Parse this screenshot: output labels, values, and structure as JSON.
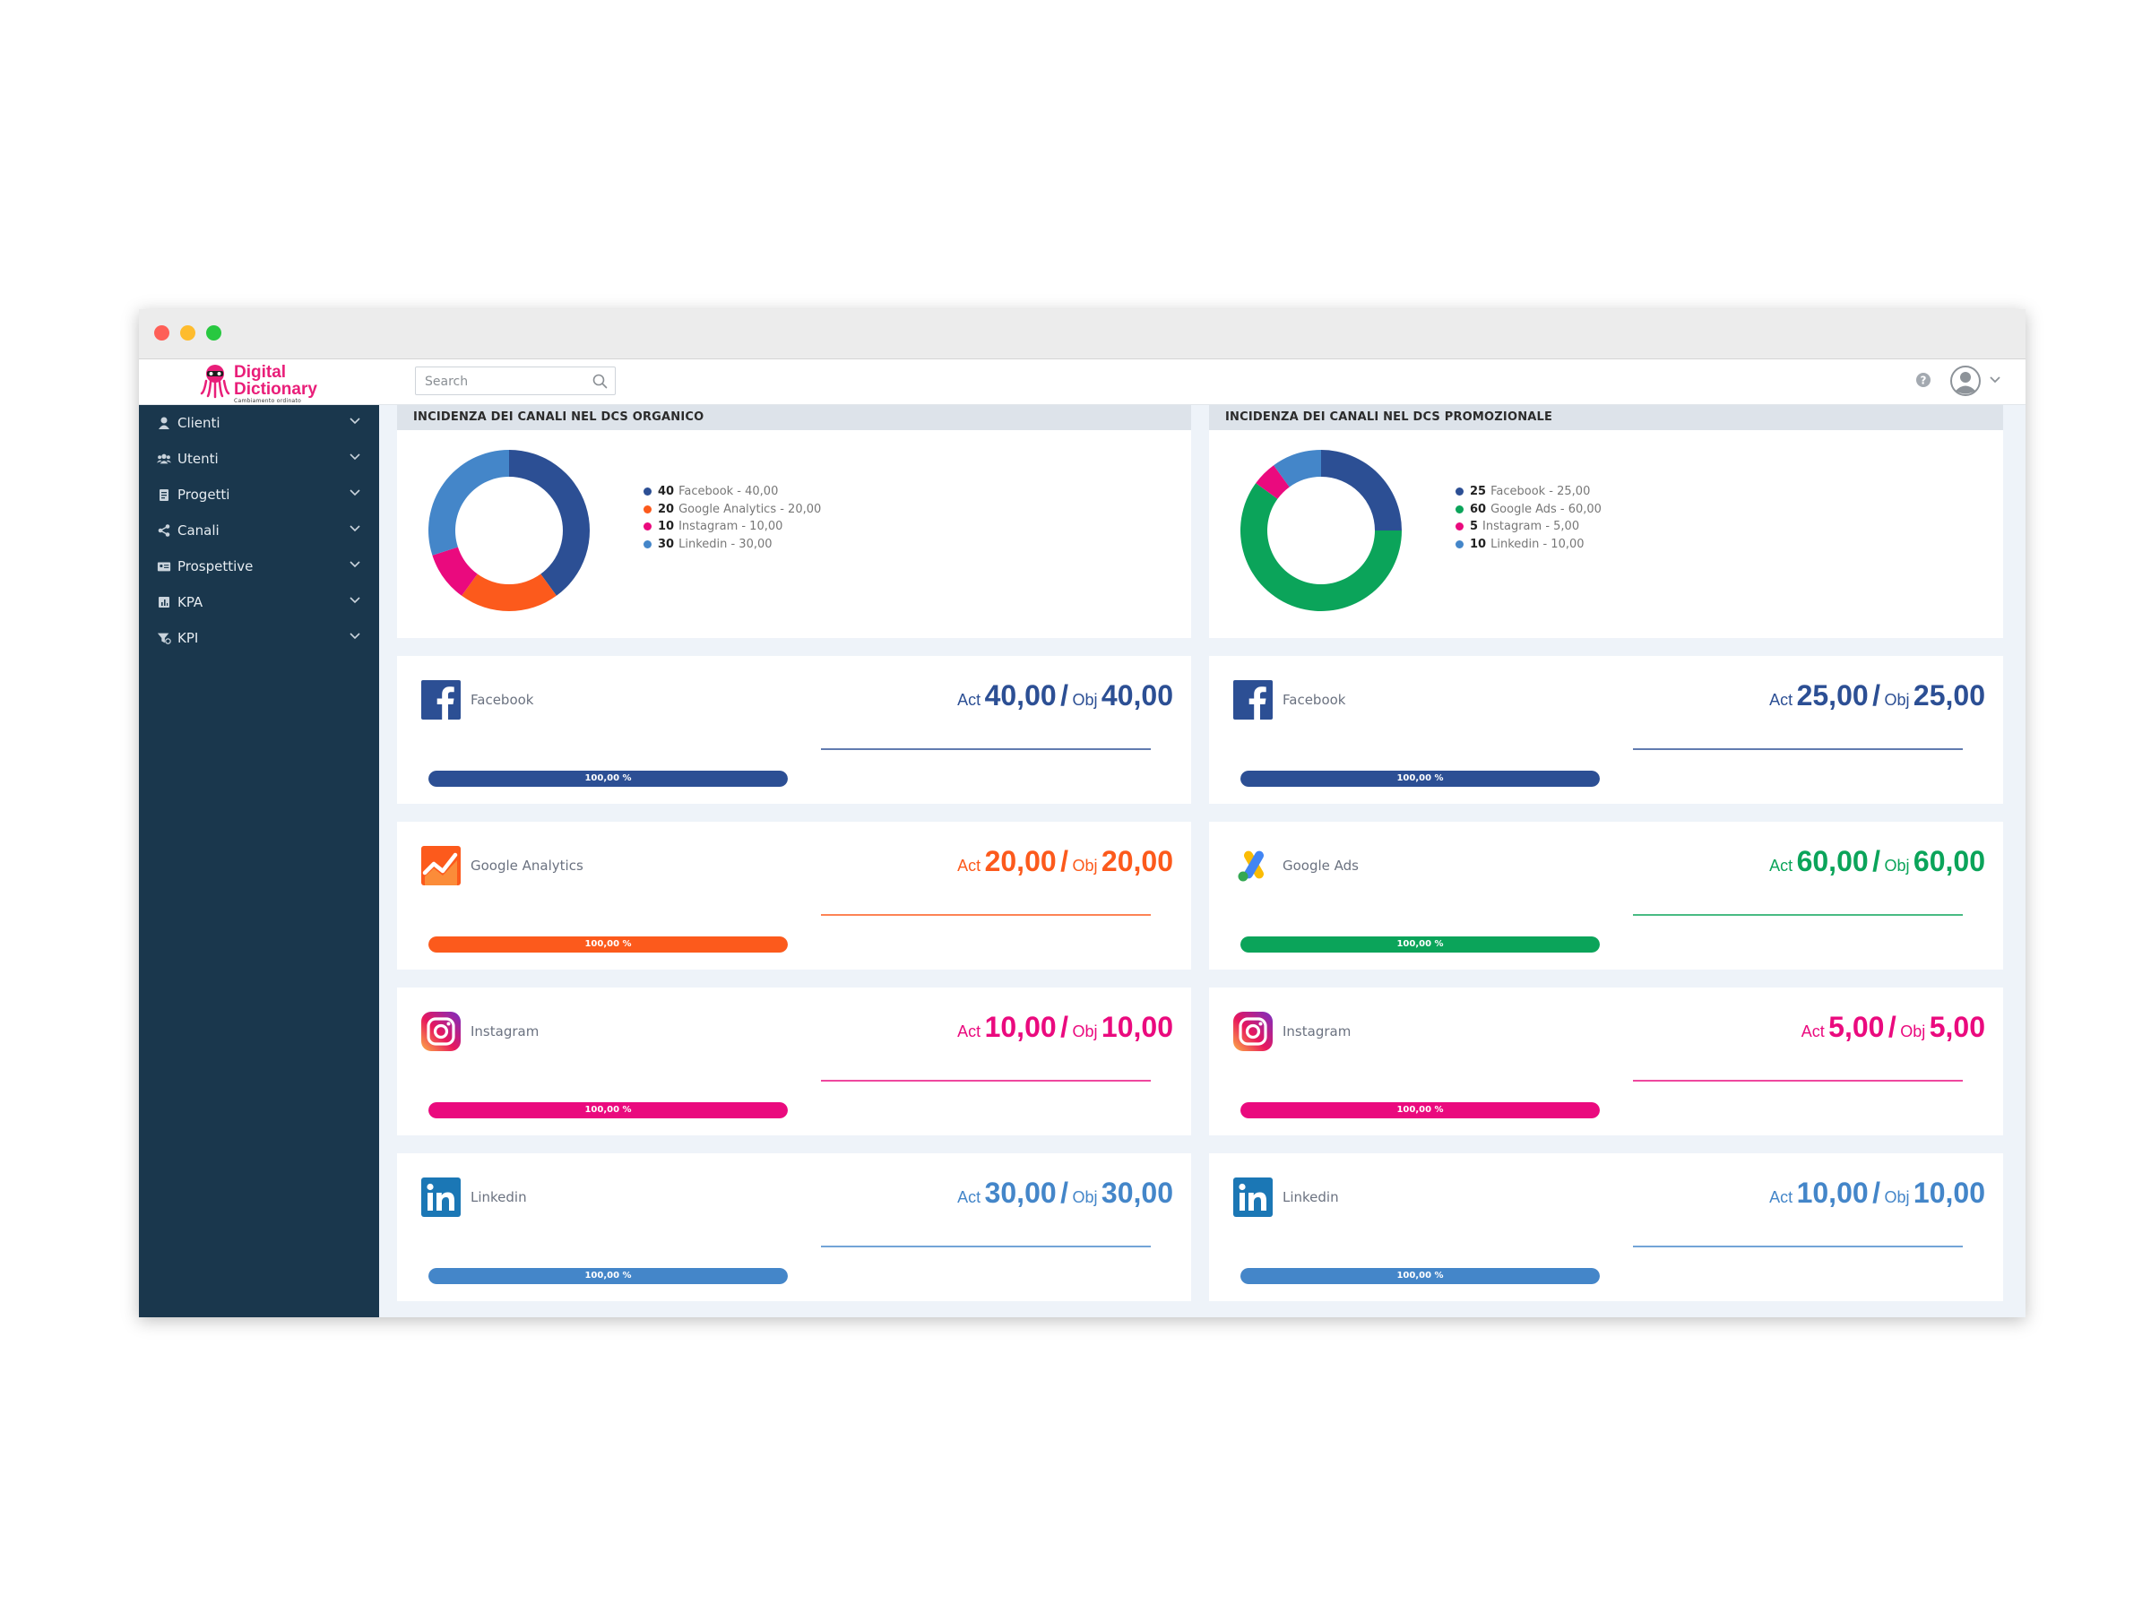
{
  "app": {
    "logo_line1": "Digital",
    "logo_line2": "Dictionary",
    "logo_tagline": "Cambiamento ordinato"
  },
  "search": {
    "placeholder": "Search",
    "value": ""
  },
  "topbar_icons": [
    "help-icon",
    "user-avatar-icon",
    "chevron-down-icon"
  ],
  "sidebar": {
    "items": [
      {
        "label": "Clienti",
        "icon": "user-icon"
      },
      {
        "label": "Utenti",
        "icon": "users-icon"
      },
      {
        "label": "Progetti",
        "icon": "clipboard-icon"
      },
      {
        "label": "Canali",
        "icon": "share-icon"
      },
      {
        "label": "Prospettive",
        "icon": "id-card-icon"
      },
      {
        "label": "KPA",
        "icon": "chart-doc-icon"
      },
      {
        "label": "KPI",
        "icon": "filter-icon"
      }
    ]
  },
  "colors": {
    "facebook": "#2c4f94",
    "google_analytics": "#fc5a1c",
    "google_ads": "#0ba45a",
    "instagram": "#ea0a7e",
    "linkedin": "#4486c9",
    "sidebar_bg": "#1a374d"
  },
  "panels": [
    {
      "title": "INCIDENZA DEI CANALI NEL DCS ORGANICO",
      "chart_data": {
        "type": "pie",
        "title": "INCIDENZA DEI CANALI NEL DCS ORGANICO",
        "categories": [
          "Facebook",
          "Google Analytics",
          "Instagram",
          "Linkedin"
        ],
        "values": [
          40,
          20,
          10,
          30
        ],
        "colors": [
          "#2c4f94",
          "#fc5a1c",
          "#ea0a7e",
          "#4486c9"
        ],
        "legend_position": "right"
      },
      "legend": [
        {
          "value": "40",
          "label": "Facebook - 40,00",
          "color": "#2c4f94"
        },
        {
          "value": "20",
          "label": "Google Analytics - 20,00",
          "color": "#fc5a1c"
        },
        {
          "value": "10",
          "label": "Instagram - 10,00",
          "color": "#ea0a7e"
        },
        {
          "value": "30",
          "label": "Linkedin - 30,00",
          "color": "#4486c9"
        }
      ]
    },
    {
      "title": "INCIDENZA DEI CANALI NEL DCS PROMOZIONALE",
      "chart_data": {
        "type": "pie",
        "title": "INCIDENZA DEI CANALI NEL DCS PROMOZIONALE",
        "categories": [
          "Facebook",
          "Google Ads",
          "Instagram",
          "Linkedin"
        ],
        "values": [
          25,
          60,
          5,
          10
        ],
        "colors": [
          "#2c4f94",
          "#0ba45a",
          "#ea0a7e",
          "#4486c9"
        ],
        "legend_position": "right"
      },
      "legend": [
        {
          "value": "25",
          "label": "Facebook - 25,00",
          "color": "#2c4f94"
        },
        {
          "value": "60",
          "label": "Google Ads - 60,00",
          "color": "#0ba45a"
        },
        {
          "value": "5",
          "label": "Instagram - 5,00",
          "color": "#ea0a7e"
        },
        {
          "value": "10",
          "label": "Linkedin - 10,00",
          "color": "#4486c9"
        }
      ]
    }
  ],
  "metrics": [
    [
      {
        "name": "Facebook",
        "icon": "facebook-icon",
        "color": "#2c4f94",
        "act_label": "Act",
        "act": "40,00",
        "sep": "/",
        "obj_label": "Obj",
        "obj": "40,00",
        "progress": 1.0,
        "progress_label": "100,00 %"
      },
      {
        "name": "Google Analytics",
        "icon": "google-analytics-icon",
        "color": "#fc5a1c",
        "act_label": "Act",
        "act": "20,00",
        "sep": "/",
        "obj_label": "Obj",
        "obj": "20,00",
        "progress": 1.0,
        "progress_label": "100,00 %"
      },
      {
        "name": "Instagram",
        "icon": "instagram-icon",
        "color": "#ea0a7e",
        "act_label": "Act",
        "act": "10,00",
        "sep": "/",
        "obj_label": "Obj",
        "obj": "10,00",
        "progress": 1.0,
        "progress_label": "100,00 %"
      },
      {
        "name": "Linkedin",
        "icon": "linkedin-icon",
        "color": "#4486c9",
        "act_label": "Act",
        "act": "30,00",
        "sep": "/",
        "obj_label": "Obj",
        "obj": "30,00",
        "progress": 1.0,
        "progress_label": "100,00 %"
      }
    ],
    [
      {
        "name": "Facebook",
        "icon": "facebook-icon",
        "color": "#2c4f94",
        "act_label": "Act",
        "act": "25,00",
        "sep": "/",
        "obj_label": "Obj",
        "obj": "25,00",
        "progress": 1.0,
        "progress_label": "100,00 %"
      },
      {
        "name": "Google Ads",
        "icon": "google-ads-icon",
        "color": "#0ba45a",
        "act_label": "Act",
        "act": "60,00",
        "sep": "/",
        "obj_label": "Obj",
        "obj": "60,00",
        "progress": 1.0,
        "progress_label": "100,00 %"
      },
      {
        "name": "Instagram",
        "icon": "instagram-icon",
        "color": "#ea0a7e",
        "act_label": "Act",
        "act": "5,00",
        "sep": "/",
        "obj_label": "Obj",
        "obj": "5,00",
        "progress": 1.0,
        "progress_label": "100,00 %"
      },
      {
        "name": "Linkedin",
        "icon": "linkedin-icon",
        "color": "#4486c9",
        "act_label": "Act",
        "act": "10,00",
        "sep": "/",
        "obj_label": "Obj",
        "obj": "10,00",
        "progress": 1.0,
        "progress_label": "100,00 %"
      }
    ]
  ]
}
